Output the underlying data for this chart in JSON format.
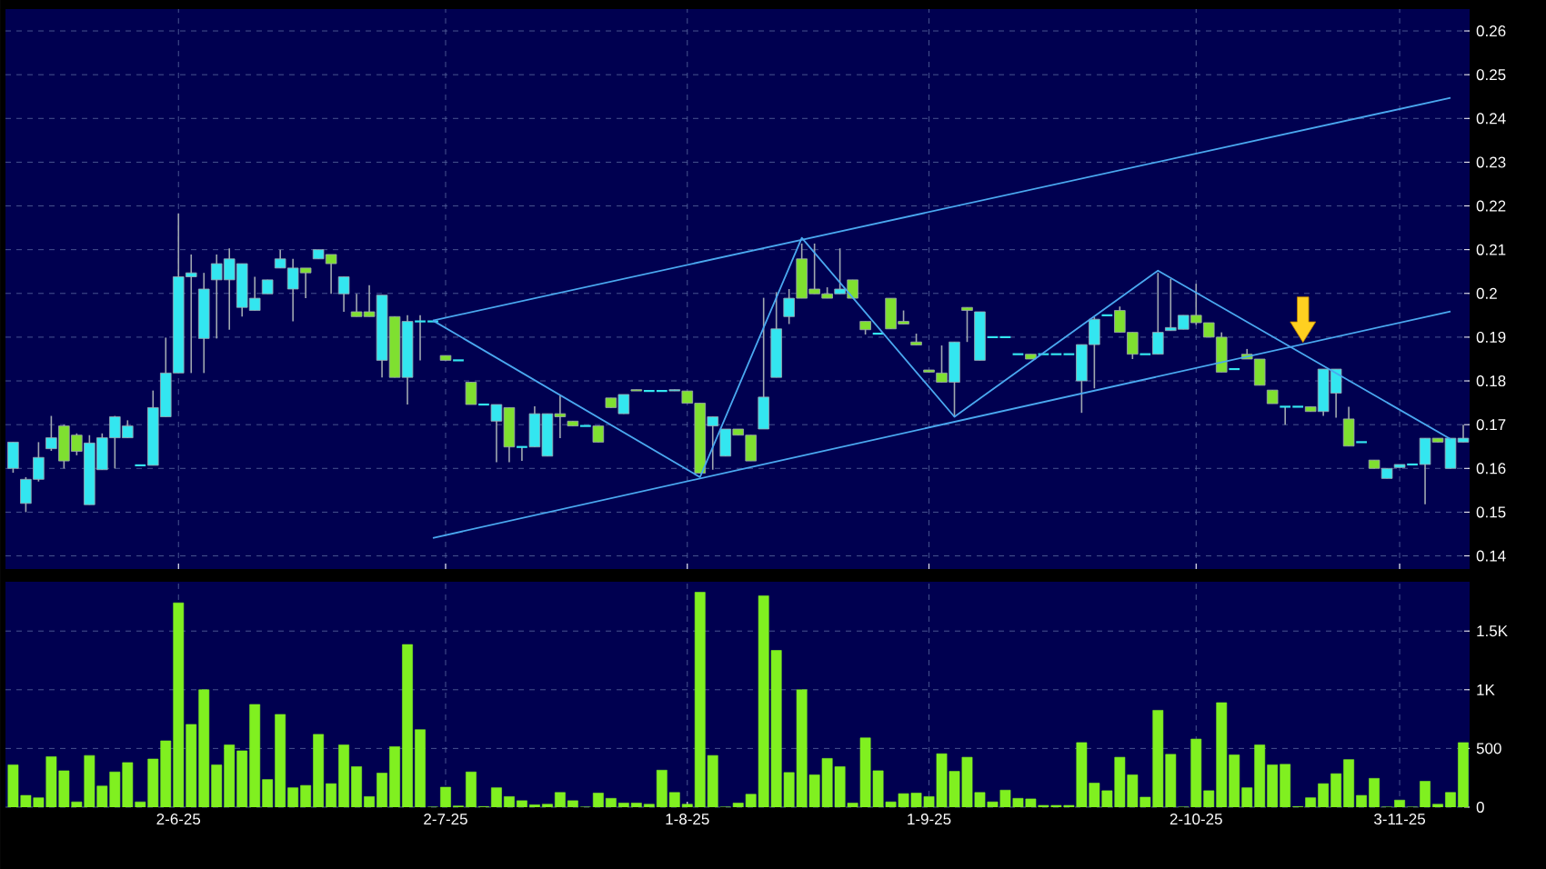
{
  "chart_data": [
    {
      "type": "candlestick",
      "tick_labels": "y",
      "grid": true,
      "ylim": [
        0.137,
        0.265
      ],
      "yticks": [
        0.14,
        0.15,
        0.16,
        0.17,
        0.18,
        0.19,
        0.2,
        0.21,
        0.22,
        0.23,
        0.24,
        0.25,
        0.26
      ],
      "categories": [
        null,
        null,
        null,
        null,
        null,
        null,
        null,
        null,
        null,
        null,
        null,
        null,
        null,
        null,
        null,
        null,
        null,
        null,
        null,
        null,
        null,
        null,
        null,
        null,
        null,
        null,
        null,
        null,
        null,
        null,
        null,
        null,
        null,
        null,
        null,
        null,
        null,
        null,
        null,
        null,
        null,
        null,
        null,
        null,
        null,
        null,
        null,
        null,
        null,
        null,
        null,
        null,
        null,
        null,
        null,
        null,
        null,
        null,
        null,
        null,
        null,
        null,
        null,
        null,
        null,
        null,
        null,
        null,
        null,
        null,
        null,
        null,
        null,
        null,
        null,
        null,
        null,
        null,
        null,
        null,
        null,
        null,
        null,
        null,
        null,
        null,
        null,
        null,
        null,
        null,
        null,
        null,
        null,
        null,
        null,
        null,
        null,
        null,
        null,
        null,
        null,
        null,
        null,
        null,
        null,
        null,
        null,
        null,
        null,
        null,
        null,
        null,
        null,
        null,
        null
      ],
      "ohlc": [
        [
          0.16,
          0.166,
          0.159,
          0.166
        ],
        [
          0.152,
          0.158,
          0.15,
          0.1575
        ],
        [
          0.1575,
          0.166,
          0.157,
          0.1625
        ],
        [
          0.1645,
          0.172,
          0.164,
          0.167
        ],
        [
          0.1697,
          0.17,
          0.16,
          0.1617
        ],
        [
          0.1676,
          0.168,
          0.163,
          0.1639
        ],
        [
          0.1517,
          0.1676,
          0.1517,
          0.1658
        ],
        [
          0.1597,
          0.168,
          0.1597,
          0.167
        ],
        [
          0.167,
          0.172,
          0.16,
          0.1718
        ],
        [
          0.167,
          0.171,
          0.167,
          0.1697
        ],
        [
          0.1607,
          0.1607,
          0.1607,
          0.1607
        ],
        [
          0.1607,
          0.1778,
          0.1607,
          0.1739
        ],
        [
          0.1718,
          0.1899,
          0.1718,
          0.1818
        ],
        [
          0.1818,
          0.2183,
          0.1818,
          0.2038
        ],
        [
          0.2038,
          0.2089,
          0.1818,
          0.2047
        ],
        [
          0.1897,
          0.2047,
          0.1818,
          0.201
        ],
        [
          0.2031,
          0.2089,
          0.1897,
          0.2068
        ],
        [
          0.2031,
          0.2103,
          0.1917,
          0.2079
        ],
        [
          0.1968,
          0.2068,
          0.1947,
          0.2068
        ],
        [
          0.1961,
          0.2038,
          0.1961,
          0.1989
        ],
        [
          0.1999,
          0.2031,
          0.1999,
          0.2031
        ],
        [
          0.2058,
          0.21,
          0.2058,
          0.2079
        ],
        [
          0.201,
          0.2079,
          0.1936,
          0.2058
        ],
        [
          0.2058,
          0.2058,
          0.1989,
          0.2047
        ],
        [
          0.2079,
          0.21,
          0.2079,
          0.21
        ],
        [
          0.2089,
          0.2089,
          0.1999,
          0.2068
        ],
        [
          0.1999,
          0.2038,
          0.1958,
          0.2038
        ],
        [
          0.1958,
          0.1999,
          0.1947,
          0.1947
        ],
        [
          0.1958,
          0.2019,
          0.1947,
          0.1947
        ],
        [
          0.1847,
          0.1996,
          0.1808,
          0.1996
        ],
        [
          0.1947,
          0.1947,
          0.1808,
          0.1808
        ],
        [
          0.1808,
          0.195,
          0.1746,
          0.1936
        ],
        [
          0.1936,
          0.195,
          0.1847,
          0.1936
        ],
        [
          0.1936,
          0.1936,
          0.1936,
          0.1936
        ],
        [
          0.1858,
          0.1858,
          0.1847,
          0.1847
        ],
        [
          0.1847,
          0.1847,
          0.1847,
          0.1847
        ],
        [
          0.1797,
          0.1797,
          0.1746,
          0.1746
        ],
        [
          0.1746,
          0.1746,
          0.1746,
          0.1746
        ],
        [
          0.1708,
          0.1746,
          0.1614,
          0.1746
        ],
        [
          0.1739,
          0.1739,
          0.1614,
          0.1649
        ],
        [
          0.1649,
          0.1649,
          0.1617,
          0.1649
        ],
        [
          0.1649,
          0.1742,
          0.1649,
          0.1725
        ],
        [
          0.1628,
          0.1725,
          0.1628,
          0.1725
        ],
        [
          0.1725,
          0.1767,
          0.1669,
          0.1718
        ],
        [
          0.1708,
          0.1708,
          0.1697,
          0.1697
        ],
        [
          0.1697,
          0.1697,
          0.1697,
          0.1697
        ],
        [
          0.1697,
          0.1697,
          0.166,
          0.166
        ],
        [
          0.1761,
          0.1761,
          0.1739,
          0.1739
        ],
        [
          0.1725,
          0.1769,
          0.1725,
          0.1769
        ],
        [
          0.178,
          0.178,
          0.1777,
          0.1777
        ],
        [
          0.1777,
          0.1777,
          0.1777,
          0.1777
        ],
        [
          0.1777,
          0.1777,
          0.1777,
          0.1777
        ],
        [
          0.1777,
          0.178,
          0.1777,
          0.178
        ],
        [
          0.1777,
          0.1777,
          0.1749,
          0.1749
        ],
        [
          0.1749,
          0.1749,
          0.1589,
          0.1589
        ],
        [
          0.1697,
          0.1718,
          0.1597,
          0.1718
        ],
        [
          0.1628,
          0.169,
          0.1628,
          0.169
        ],
        [
          0.169,
          0.169,
          0.1676,
          0.1676
        ],
        [
          0.1676,
          0.1676,
          0.1617,
          0.1617
        ],
        [
          0.169,
          0.199,
          0.169,
          0.1763
        ],
        [
          0.1808,
          0.2003,
          0.1808,
          0.1919
        ],
        [
          0.1947,
          0.201,
          0.193,
          0.1989
        ],
        [
          0.2079,
          0.2114,
          0.1989,
          0.1989
        ],
        [
          0.201,
          0.2114,
          0.1999,
          0.1999
        ],
        [
          0.1999,
          0.2014,
          0.1989,
          0.1989
        ],
        [
          0.1999,
          0.2103,
          0.1999,
          0.201
        ],
        [
          0.2031,
          0.2031,
          0.1989,
          0.1989
        ],
        [
          0.1936,
          0.1936,
          0.1906,
          0.1917
        ],
        [
          0.1908,
          0.1908,
          0.1908,
          0.1908
        ],
        [
          0.1989,
          0.1989,
          0.1919,
          0.1919
        ],
        [
          0.1936,
          0.1961,
          0.193,
          0.193
        ],
        [
          0.1889,
          0.1908,
          0.1882,
          0.1882
        ],
        [
          0.1825,
          0.1825,
          0.182,
          0.182
        ],
        [
          0.1818,
          0.1881,
          0.1797,
          0.1797
        ],
        [
          0.1797,
          0.1889,
          0.1718,
          0.1889
        ],
        [
          0.1968,
          0.1968,
          0.1889,
          0.1961
        ],
        [
          0.1847,
          0.1958,
          0.1847,
          0.1958
        ],
        [
          0.19,
          0.19,
          0.19,
          0.19
        ],
        [
          0.19,
          0.19,
          0.19,
          0.19
        ],
        [
          0.1861,
          0.1861,
          0.1861,
          0.1861
        ],
        [
          0.1861,
          0.1861,
          0.185,
          0.185
        ],
        [
          0.1861,
          0.1861,
          0.1861,
          0.1861
        ],
        [
          0.1861,
          0.1861,
          0.1861,
          0.1861
        ],
        [
          0.1861,
          0.1861,
          0.1861,
          0.1861
        ],
        [
          0.18,
          0.1883,
          0.1727,
          0.1883
        ],
        [
          0.1883,
          0.1946,
          0.1783,
          0.1941
        ],
        [
          0.195,
          0.195,
          0.195,
          0.195
        ],
        [
          0.1961,
          0.197,
          0.1911,
          0.1911
        ],
        [
          0.1911,
          0.1911,
          0.185,
          0.1861
        ],
        [
          0.1861,
          0.1861,
          0.1861,
          0.1861
        ],
        [
          0.1861,
          0.2047,
          0.1861,
          0.1911
        ],
        [
          0.1915,
          0.2033,
          0.1915,
          0.1922
        ],
        [
          0.1918,
          0.195,
          0.1918,
          0.195
        ],
        [
          0.195,
          0.2022,
          0.1928,
          0.1933
        ],
        [
          0.1933,
          0.1933,
          0.19,
          0.19
        ],
        [
          0.19,
          0.1911,
          0.182,
          0.182
        ],
        [
          0.1827,
          0.1827,
          0.1827,
          0.1827
        ],
        [
          0.1861,
          0.1873,
          0.185,
          0.185
        ],
        [
          0.185,
          0.185,
          0.179,
          0.179
        ],
        [
          0.1779,
          0.1779,
          0.1748,
          0.1748
        ],
        [
          0.1741,
          0.1741,
          0.17,
          0.1741
        ],
        [
          0.1741,
          0.1741,
          0.1741,
          0.1741
        ],
        [
          0.1741,
          0.1741,
          0.173,
          0.173
        ],
        [
          0.173,
          0.1827,
          0.172,
          0.1827
        ],
        [
          0.1772,
          0.1827,
          0.1716,
          0.1827
        ],
        [
          0.1713,
          0.1741,
          0.1651,
          0.1651
        ],
        [
          0.166,
          0.166,
          0.166,
          0.166
        ],
        [
          0.1619,
          0.1619,
          0.16,
          0.16
        ],
        [
          0.1577,
          0.16,
          0.1577,
          0.16
        ],
        [
          0.1602,
          0.1609,
          0.1602,
          0.1609
        ],
        [
          0.1609,
          0.1609,
          0.1609,
          0.1609
        ],
        [
          0.1609,
          0.1669,
          0.1518,
          0.1669
        ],
        [
          0.1669,
          0.1669,
          0.166,
          0.166
        ],
        [
          0.16,
          0.1669,
          0.16,
          0.1669
        ],
        [
          0.166,
          0.17,
          0.166,
          0.1669
        ]
      ],
      "colors": [
        "#33e6f0",
        "#33e6f0",
        "#33e6f0",
        "#33e6f0",
        "#7fe030",
        "#7fe030",
        "#33e6f0",
        "#33e6f0",
        "#33e6f0",
        "#33e6f0",
        "#33e6f0",
        "#33e6f0",
        "#33e6f0",
        "#33e6f0",
        "#33e6f0",
        "#33e6f0",
        "#33e6f0",
        "#33e6f0",
        "#33e6f0",
        "#33e6f0",
        "#33e6f0",
        "#33e6f0",
        "#33e6f0",
        "#7fe030",
        "#33e6f0",
        "#7fe030",
        "#33e6f0",
        "#7fe030",
        "#7fe030",
        "#33e6f0",
        "#7fe030",
        "#33e6f0",
        "#33e6f0",
        "#33e6f0",
        "#7fe030",
        "#33e6f0",
        "#7fe030",
        "#33e6f0",
        "#33e6f0",
        "#7fe030",
        "#33e6f0",
        "#33e6f0",
        "#33e6f0",
        "#7fe030",
        "#7fe030",
        "#33e6f0",
        "#7fe030",
        "#7fe030",
        "#33e6f0",
        "#7fe030",
        "#33e6f0",
        "#33e6f0",
        "#33e6f0",
        "#7fe030",
        "#7fe030",
        "#33e6f0",
        "#33e6f0",
        "#7fe030",
        "#7fe030",
        "#33e6f0",
        "#33e6f0",
        "#33e6f0",
        "#7fe030",
        "#7fe030",
        "#7fe030",
        "#33e6f0",
        "#7fe030",
        "#7fe030",
        "#33e6f0",
        "#7fe030",
        "#7fe030",
        "#7fe030",
        "#7fe030",
        "#7fe030",
        "#33e6f0",
        "#7fe030",
        "#33e6f0",
        "#33e6f0",
        "#33e6f0",
        "#33e6f0",
        "#7fe030",
        "#33e6f0",
        "#33e6f0",
        "#33e6f0",
        "#33e6f0",
        "#33e6f0",
        "#33e6f0",
        "#7fe030",
        "#7fe030",
        "#33e6f0",
        "#33e6f0",
        "#33e6f0",
        "#33e6f0",
        "#7fe030",
        "#7fe030",
        "#7fe030",
        "#33e6f0",
        "#7fe030",
        "#7fe030",
        "#7fe030",
        "#33e6f0",
        "#33e6f0",
        "#7fe030",
        "#33e6f0",
        "#33e6f0",
        "#7fe030",
        "#33e6f0",
        "#7fe030",
        "#33e6f0",
        "#33e6f0",
        "#33e6f0",
        "#33e6f0",
        "#7fe030",
        "#33e6f0",
        "#33e6f0"
      ],
      "series": [
        {
          "type": "line",
          "color": "#4aa8f0",
          "values": [
            null,
            null,
            null,
            null,
            null,
            null,
            null,
            null,
            null,
            null,
            null,
            null,
            null,
            null,
            null,
            null,
            null,
            null,
            null,
            null,
            null,
            null,
            null,
            null,
            null,
            null,
            null,
            null,
            null,
            null,
            null,
            null,
            null,
            0.1938,
            null,
            null,
            null,
            null,
            null,
            null,
            null,
            null,
            null,
            null,
            null,
            null,
            null,
            null,
            null,
            null,
            null,
            null,
            null,
            null,
            null,
            null,
            null,
            null,
            null,
            null,
            null,
            null,
            null,
            null,
            null,
            null,
            null,
            null,
            null,
            null,
            null,
            null,
            null,
            null,
            null,
            null,
            null,
            null,
            null,
            null,
            null,
            null,
            null,
            null,
            null,
            null,
            null,
            null,
            null,
            null,
            null,
            null,
            null,
            null,
            null,
            null,
            null,
            null,
            null,
            null,
            null,
            null,
            null,
            null,
            null,
            null,
            null,
            null,
            null,
            null,
            null,
            null,
            null,
            0.2447,
            null
          ]
        },
        {
          "type": "line",
          "color": "#4aa8f0",
          "values": [
            null,
            null,
            null,
            null,
            null,
            null,
            null,
            null,
            null,
            null,
            null,
            null,
            null,
            null,
            null,
            null,
            null,
            null,
            null,
            null,
            null,
            null,
            null,
            null,
            null,
            null,
            null,
            null,
            null,
            null,
            null,
            null,
            null,
            0.1441,
            null,
            null,
            null,
            null,
            null,
            null,
            null,
            null,
            null,
            null,
            null,
            null,
            null,
            null,
            null,
            null,
            null,
            null,
            null,
            null,
            null,
            null,
            null,
            null,
            null,
            null,
            null,
            null,
            null,
            null,
            null,
            null,
            null,
            null,
            null,
            null,
            null,
            null,
            null,
            null,
            null,
            null,
            null,
            null,
            null,
            null,
            null,
            null,
            null,
            null,
            null,
            null,
            null,
            null,
            null,
            null,
            null,
            null,
            null,
            null,
            null,
            null,
            null,
            null,
            null,
            null,
            null,
            null,
            null,
            null,
            null,
            null,
            null,
            null,
            null,
            null,
            null,
            null,
            null,
            0.1959,
            null
          ]
        },
        {
          "type": "line",
          "color": "#4aa8f0",
          "values": [
            null,
            null,
            null,
            null,
            null,
            null,
            null,
            null,
            null,
            null,
            null,
            null,
            null,
            null,
            null,
            null,
            null,
            null,
            null,
            null,
            null,
            null,
            null,
            null,
            null,
            null,
            null,
            null,
            null,
            null,
            null,
            null,
            null,
            0.1938,
            null,
            null,
            null,
            null,
            null,
            null,
            null,
            null,
            null,
            null,
            null,
            null,
            null,
            null,
            null,
            null,
            null,
            null,
            null,
            null,
            0.158,
            null,
            null,
            null,
            null,
            null,
            null,
            null,
            0.2127,
            null,
            null,
            null,
            null,
            null,
            null,
            null,
            null,
            null,
            null,
            null,
            0.1718,
            null,
            null,
            null,
            null,
            null,
            null,
            null,
            null,
            null,
            null,
            null,
            null,
            null,
            null,
            null,
            0.2052,
            null,
            null,
            null,
            null,
            null,
            null,
            null,
            null,
            null,
            null,
            null,
            null,
            null,
            null,
            null,
            null,
            null,
            null,
            null,
            null,
            null,
            null,
            0.1667,
            null
          ]
        }
      ]
    },
    {
      "type": "bar",
      "grid": true,
      "color": "#80f020",
      "ylim": [
        0,
        1920
      ],
      "yticks": [
        0,
        500,
        {
          "value": 1000,
          "label": "1K"
        },
        {
          "value": 1500,
          "label": "1.5K"
        }
      ],
      "categories": [
        null,
        null,
        null,
        null,
        null,
        null,
        null,
        null,
        null,
        null,
        null,
        null,
        null,
        "2-6-25",
        null,
        null,
        null,
        null,
        null,
        null,
        null,
        null,
        null,
        null,
        null,
        null,
        null,
        null,
        null,
        null,
        null,
        null,
        null,
        null,
        "2-7-25",
        null,
        null,
        null,
        null,
        null,
        null,
        null,
        null,
        null,
        null,
        null,
        null,
        null,
        null,
        null,
        null,
        null,
        null,
        "1-8-25",
        null,
        null,
        null,
        null,
        null,
        null,
        null,
        null,
        null,
        null,
        null,
        null,
        null,
        null,
        null,
        null,
        null,
        null,
        "1-9-25",
        null,
        null,
        null,
        null,
        null,
        null,
        null,
        null,
        null,
        null,
        null,
        null,
        null,
        null,
        null,
        null,
        null,
        null,
        null,
        null,
        "2-10-25",
        null,
        null,
        null,
        null,
        null,
        null,
        null,
        null,
        null,
        null,
        null,
        null,
        null,
        null,
        null,
        "3-11-25",
        null,
        null,
        null,
        null,
        null
      ],
      "values": [
        360,
        100,
        80,
        430,
        310,
        45,
        440,
        180,
        300,
        380,
        45,
        410,
        565,
        1740,
        705,
        1000,
        360,
        530,
        480,
        875,
        235,
        790,
        165,
        185,
        620,
        200,
        530,
        345,
        90,
        290,
        515,
        1385,
        660,
        0,
        170,
        10,
        300,
        5,
        165,
        90,
        55,
        20,
        25,
        125,
        55,
        0,
        120,
        75,
        35,
        35,
        25,
        315,
        125,
        25,
        1830,
        440,
        0,
        35,
        110,
        1800,
        1335,
        295,
        1000,
        275,
        415,
        345,
        35,
        590,
        310,
        45,
        115,
        120,
        90,
        455,
        305,
        425,
        125,
        45,
        145,
        75,
        70,
        15,
        15,
        15,
        550,
        205,
        140,
        425,
        275,
        85,
        825,
        450,
        0,
        580,
        140,
        890,
        445,
        165,
        530,
        360,
        365,
        5,
        80,
        200,
        285,
        405,
        100,
        245,
        0,
        60,
        0,
        220,
        25,
        125,
        550
      ]
    }
  ]
}
